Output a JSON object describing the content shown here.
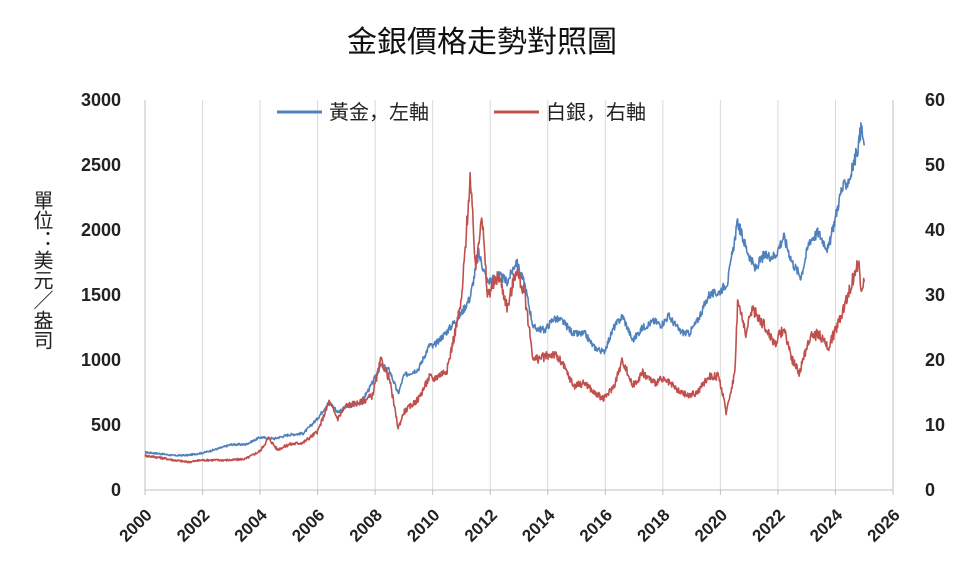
{
  "chart_data": {
    "type": "line",
    "title": "金銀價格走勢對照圖",
    "ylabel": "單位：美元／盎司",
    "ylim_left": [
      0,
      3000
    ],
    "ylim_right": [
      0,
      60
    ],
    "xlim": [
      2000,
      2026
    ],
    "yticks_left": [
      "0",
      "500",
      "1000",
      "1500",
      "2000",
      "2500",
      "3000"
    ],
    "yticks_right": [
      "0",
      "10",
      "20",
      "30",
      "40",
      "50",
      "60"
    ],
    "xticks": [
      "2000",
      "2002",
      "2004",
      "2006",
      "2008",
      "2010",
      "2012",
      "2014",
      "2016",
      "2018",
      "2020",
      "2022",
      "2024",
      "2026"
    ],
    "grid": "vertical",
    "legend_position": "top-center",
    "series": [
      {
        "name": "黃金，左軸",
        "axis": "left",
        "color": "#4f81bd",
        "points": [
          [
            2000.0,
            290
          ],
          [
            2000.5,
            280
          ],
          [
            2001.0,
            265
          ],
          [
            2001.5,
            268
          ],
          [
            2002.0,
            285
          ],
          [
            2002.5,
            315
          ],
          [
            2003.0,
            350
          ],
          [
            2003.5,
            350
          ],
          [
            2004.0,
            405
          ],
          [
            2004.5,
            395
          ],
          [
            2005.0,
            425
          ],
          [
            2005.5,
            435
          ],
          [
            2006.0,
            550
          ],
          [
            2006.4,
            680
          ],
          [
            2006.7,
            600
          ],
          [
            2007.0,
            640
          ],
          [
            2007.5,
            670
          ],
          [
            2007.9,
            820
          ],
          [
            2008.2,
            960
          ],
          [
            2008.5,
            920
          ],
          [
            2008.8,
            740
          ],
          [
            2009.0,
            880
          ],
          [
            2009.5,
            930
          ],
          [
            2009.9,
            1120
          ],
          [
            2010.0,
            1100
          ],
          [
            2010.5,
            1220
          ],
          [
            2011.0,
            1360
          ],
          [
            2011.3,
            1480
          ],
          [
            2011.6,
            1820
          ],
          [
            2011.9,
            1600
          ],
          [
            2012.3,
            1650
          ],
          [
            2012.6,
            1600
          ],
          [
            2012.9,
            1760
          ],
          [
            2013.2,
            1580
          ],
          [
            2013.5,
            1250
          ],
          [
            2013.9,
            1230
          ],
          [
            2014.2,
            1320
          ],
          [
            2014.5,
            1300
          ],
          [
            2014.9,
            1200
          ],
          [
            2015.3,
            1200
          ],
          [
            2015.6,
            1100
          ],
          [
            2015.95,
            1060
          ],
          [
            2016.3,
            1250
          ],
          [
            2016.6,
            1340
          ],
          [
            2016.95,
            1150
          ],
          [
            2017.3,
            1250
          ],
          [
            2017.7,
            1300
          ],
          [
            2017.95,
            1270
          ],
          [
            2018.2,
            1340
          ],
          [
            2018.6,
            1220
          ],
          [
            2018.9,
            1200
          ],
          [
            2019.2,
            1300
          ],
          [
            2019.6,
            1500
          ],
          [
            2019.95,
            1520
          ],
          [
            2020.25,
            1600
          ],
          [
            2020.6,
            2060
          ],
          [
            2020.9,
            1860
          ],
          [
            2021.2,
            1700
          ],
          [
            2021.5,
            1800
          ],
          [
            2021.9,
            1800
          ],
          [
            2022.2,
            1950
          ],
          [
            2022.5,
            1750
          ],
          [
            2022.8,
            1640
          ],
          [
            2023.1,
            1920
          ],
          [
            2023.4,
            1980
          ],
          [
            2023.75,
            1850
          ],
          [
            2023.95,
            2050
          ],
          [
            2024.2,
            2300
          ],
          [
            2024.5,
            2400
          ],
          [
            2024.8,
            2650
          ],
          [
            2024.9,
            2800
          ],
          [
            2025.0,
            2650
          ]
        ]
      },
      {
        "name": "白銀，右軸",
        "axis": "right",
        "color": "#c0504d",
        "points": [
          [
            2000.0,
            5.3
          ],
          [
            2000.5,
            5.0
          ],
          [
            2001.0,
            4.6
          ],
          [
            2001.5,
            4.3
          ],
          [
            2002.0,
            4.6
          ],
          [
            2002.5,
            4.6
          ],
          [
            2003.0,
            4.6
          ],
          [
            2003.5,
            4.8
          ],
          [
            2004.0,
            6.0
          ],
          [
            2004.3,
            8.0
          ],
          [
            2004.6,
            6.2
          ],
          [
            2005.0,
            7.0
          ],
          [
            2005.5,
            7.3
          ],
          [
            2006.0,
            9.0
          ],
          [
            2006.4,
            13.5
          ],
          [
            2006.7,
            11.0
          ],
          [
            2007.0,
            13.0
          ],
          [
            2007.5,
            13.5
          ],
          [
            2007.9,
            14.5
          ],
          [
            2008.2,
            20.0
          ],
          [
            2008.5,
            17.0
          ],
          [
            2008.8,
            9.5
          ],
          [
            2009.0,
            12.0
          ],
          [
            2009.5,
            14.0
          ],
          [
            2009.9,
            17.5
          ],
          [
            2010.0,
            17.0
          ],
          [
            2010.5,
            18.5
          ],
          [
            2011.0,
            29.0
          ],
          [
            2011.3,
            48.0
          ],
          [
            2011.5,
            34.0
          ],
          [
            2011.7,
            43.0
          ],
          [
            2011.9,
            30.0
          ],
          [
            2012.3,
            33.0
          ],
          [
            2012.6,
            28.0
          ],
          [
            2012.9,
            34.0
          ],
          [
            2013.2,
            30.0
          ],
          [
            2013.5,
            20.0
          ],
          [
            2013.9,
            20.5
          ],
          [
            2014.2,
            21.0
          ],
          [
            2014.5,
            19.5
          ],
          [
            2014.9,
            16.0
          ],
          [
            2015.3,
            16.5
          ],
          [
            2015.6,
            15.0
          ],
          [
            2015.95,
            14.0
          ],
          [
            2016.3,
            16.0
          ],
          [
            2016.6,
            20.0
          ],
          [
            2016.95,
            16.0
          ],
          [
            2017.3,
            18.0
          ],
          [
            2017.7,
            16.5
          ],
          [
            2017.95,
            17.0
          ],
          [
            2018.2,
            16.5
          ],
          [
            2018.6,
            15.0
          ],
          [
            2018.9,
            14.5
          ],
          [
            2019.2,
            15.0
          ],
          [
            2019.6,
            17.5
          ],
          [
            2019.95,
            17.5
          ],
          [
            2020.2,
            12.0
          ],
          [
            2020.5,
            18.0
          ],
          [
            2020.6,
            29.0
          ],
          [
            2020.9,
            24.0
          ],
          [
            2021.1,
            28.0
          ],
          [
            2021.5,
            25.5
          ],
          [
            2021.9,
            22.5
          ],
          [
            2022.2,
            25.0
          ],
          [
            2022.5,
            20.0
          ],
          [
            2022.75,
            18.0
          ],
          [
            2023.1,
            23.5
          ],
          [
            2023.4,
            24.0
          ],
          [
            2023.75,
            22.0
          ],
          [
            2023.95,
            24.0
          ],
          [
            2024.2,
            27.0
          ],
          [
            2024.5,
            31.0
          ],
          [
            2024.8,
            35.0
          ],
          [
            2024.9,
            31.0
          ],
          [
            2025.0,
            32.0
          ]
        ]
      }
    ]
  }
}
